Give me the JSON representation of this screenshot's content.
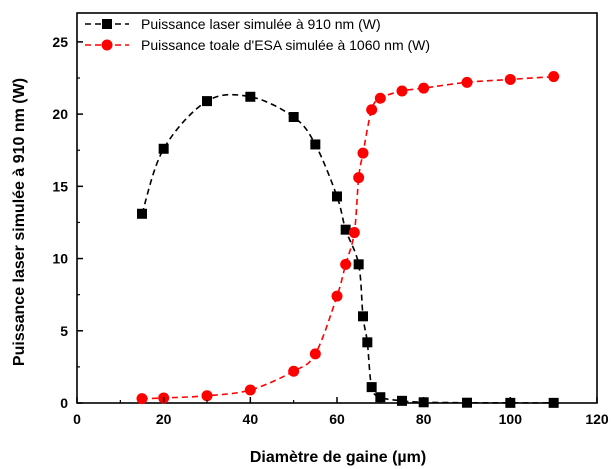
{
  "chart_data": {
    "type": "scatter",
    "xlabel": "Diamètre de gaine (µm)",
    "ylabel": "Puissance laser simulée à 910 nm (W)",
    "xlim": [
      0,
      120
    ],
    "ylim": [
      0,
      27
    ],
    "xticks": [
      0,
      20,
      40,
      60,
      80,
      100,
      120
    ],
    "yticks": [
      0,
      5,
      10,
      15,
      20,
      25
    ],
    "grid": false,
    "legend_position": "top-left",
    "series": [
      {
        "name": "Puissance laser simulée à 910 nm (W)",
        "color": "#000000",
        "marker": "square",
        "line": "dashed",
        "x": [
          15,
          20,
          30,
          40,
          50,
          55,
          60,
          62,
          65,
          66,
          67,
          68,
          70,
          75,
          80,
          90,
          100,
          110
        ],
        "y": [
          13.1,
          17.6,
          20.9,
          21.2,
          19.8,
          17.9,
          14.3,
          12.0,
          9.6,
          6.0,
          4.2,
          1.1,
          0.4,
          0.15,
          0.05,
          0.02,
          0.01,
          0.01
        ]
      },
      {
        "name": "Puissance toale d'ESA simulée à 1060 nm (W)",
        "color": "#ff0000",
        "marker": "circle",
        "line": "dashed",
        "x": [
          15,
          20,
          30,
          40,
          50,
          55,
          60,
          62,
          64,
          65,
          66,
          68,
          70,
          75,
          80,
          90,
          100,
          110
        ],
        "y": [
          0.3,
          0.35,
          0.5,
          0.9,
          2.2,
          3.4,
          7.4,
          9.6,
          11.8,
          15.6,
          17.3,
          20.3,
          21.1,
          21.6,
          21.8,
          22.2,
          22.4,
          22.6
        ]
      }
    ]
  }
}
